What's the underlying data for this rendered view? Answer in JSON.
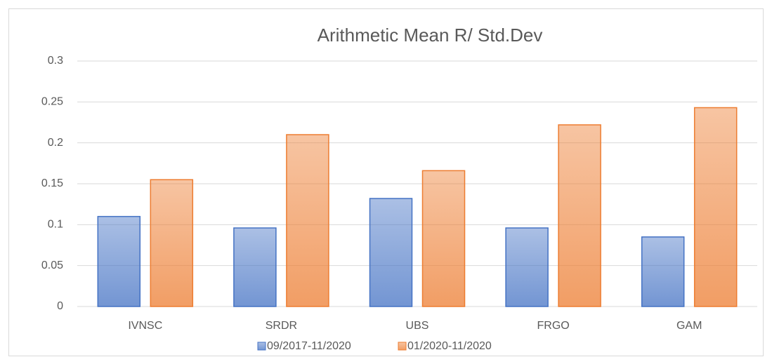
{
  "chart_data": {
    "type": "bar",
    "title": "Arithmetic Mean R/ Std.Dev",
    "categories": [
      "IVNSC",
      "SRDR",
      "UBS",
      "FRGO",
      "GAM"
    ],
    "series": [
      {
        "name": "09/2017-11/2020",
        "color": "#4472c4",
        "values": [
          0.11,
          0.096,
          0.132,
          0.096,
          0.085
        ]
      },
      {
        "name": "01/2020-11/2020",
        "color": "#ed7d31",
        "values": [
          0.155,
          0.21,
          0.166,
          0.222,
          0.243
        ]
      }
    ],
    "ylim": [
      0,
      0.3
    ],
    "yticks": [
      0,
      0.05,
      0.1,
      0.15,
      0.2,
      0.25,
      0.3
    ],
    "grid": true,
    "legend": "bottom"
  }
}
